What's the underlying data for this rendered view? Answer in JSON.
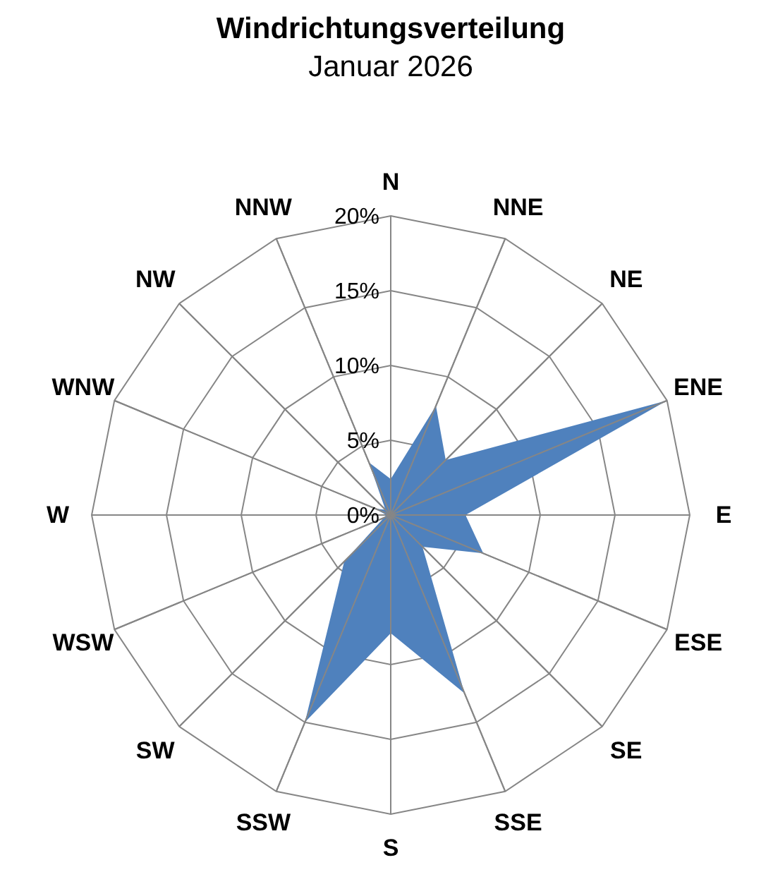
{
  "chart_data": {
    "type": "radar",
    "title": "Windrichtungsverteilung",
    "subtitle": "Januar 2026",
    "categories": [
      "N",
      "NNE",
      "NE",
      "ENE",
      "E",
      "ESE",
      "SE",
      "SSE",
      "S",
      "SSW",
      "SW",
      "WSW",
      "W",
      "WNW",
      "NW",
      "NNW"
    ],
    "series": [
      {
        "color": "#4f81bd",
        "values": [
          2.4,
          7.9,
          5.2,
          20,
          5,
          6.7,
          3,
          12.9,
          7.9,
          15,
          4.4,
          0.5,
          0.3,
          1.1,
          0.5,
          3.8
        ]
      }
    ],
    "ylim": [
      0,
      20
    ],
    "yticks": [
      {
        "value": 0,
        "label": "0%"
      },
      {
        "value": 5,
        "label": "5%"
      },
      {
        "value": 10,
        "label": "10%"
      },
      {
        "value": 15,
        "label": "15%"
      },
      {
        "value": 20,
        "label": "20%"
      }
    ],
    "grid": true
  }
}
